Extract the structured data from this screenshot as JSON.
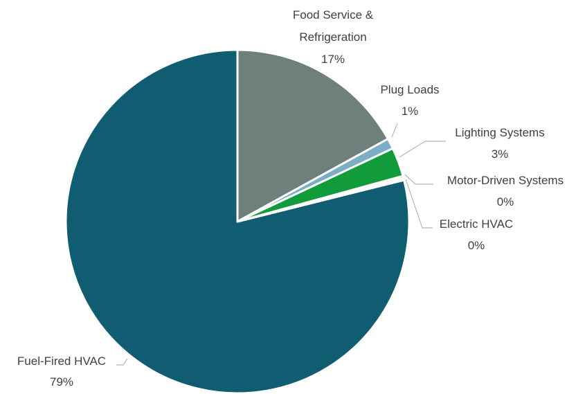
{
  "chart_data": {
    "type": "pie",
    "title": "",
    "slices": [
      {
        "label": "Fuel-Fired HVAC",
        "value": 79,
        "display": "79%",
        "color": "#105d71"
      },
      {
        "label": "Food Service & Refrigeration",
        "value": 17,
        "display": "17%",
        "color": "#6f7f7b"
      },
      {
        "label": "Plug Loads",
        "value": 1,
        "display": "1%",
        "color": "#7aaec4"
      },
      {
        "label": "Lighting Systems",
        "value": 3,
        "display": "3%",
        "color": "#129b3a"
      },
      {
        "label": "Motor-Driven Systems",
        "value": 0,
        "display": "0%",
        "color": "#c6d24d"
      },
      {
        "label": "Electric HVAC",
        "value": 0,
        "display": "0%",
        "color": "#e0b879"
      }
    ]
  }
}
